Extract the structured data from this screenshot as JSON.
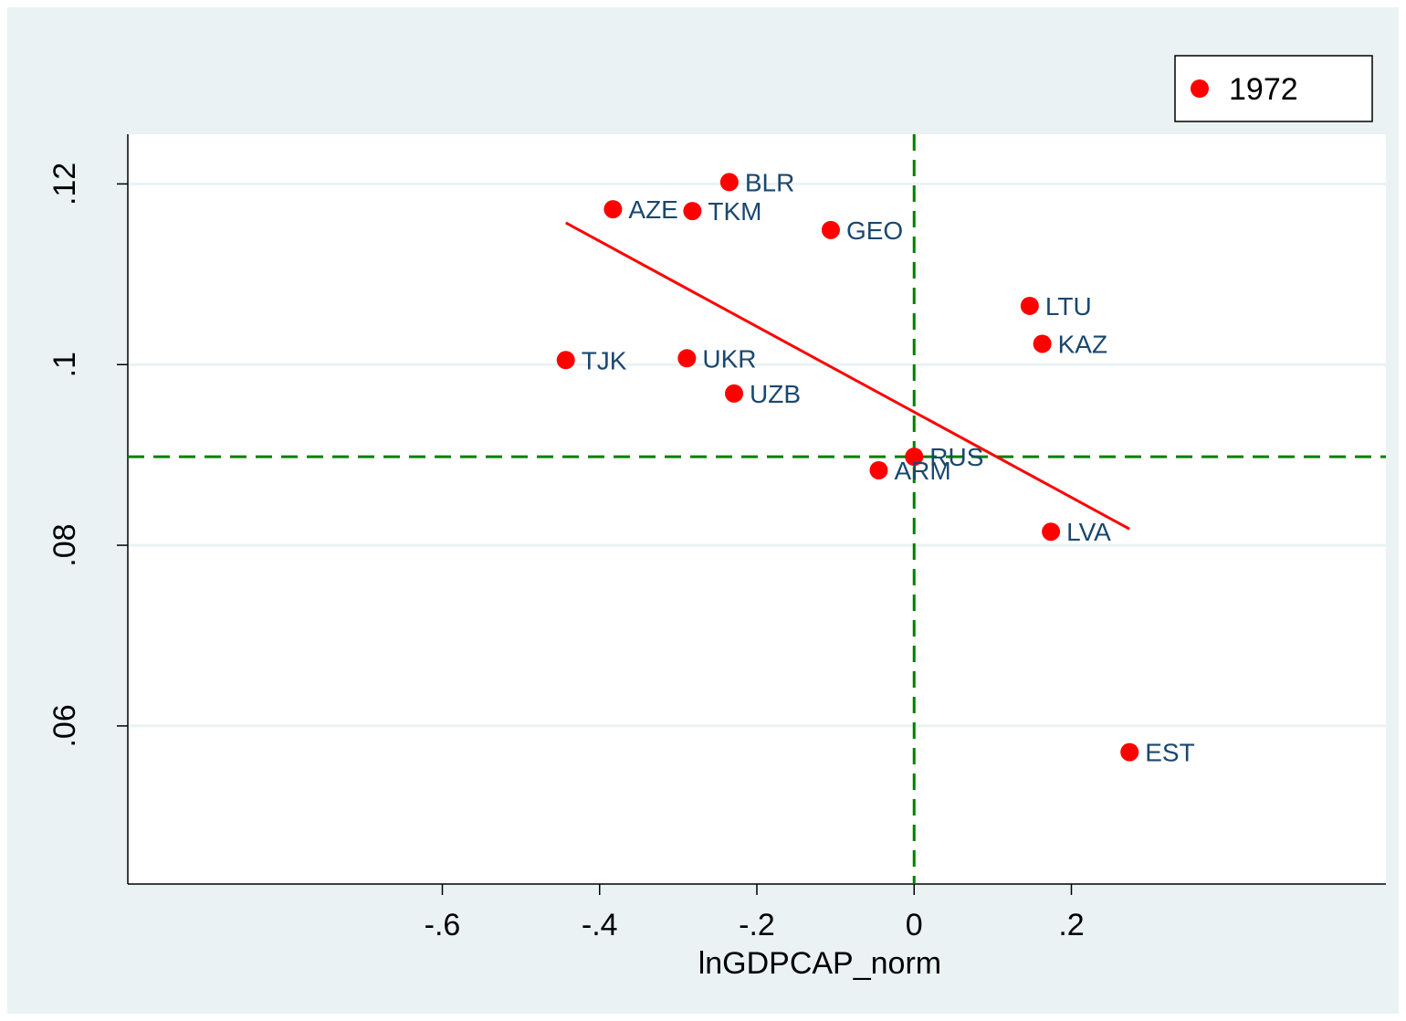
{
  "chart_data": {
    "type": "scatter",
    "xlabel": "lnGDPCAP_norm",
    "ylabel": "",
    "xlim": [
      -1.0,
      0.6
    ],
    "ylim": [
      0.0425,
      0.1255
    ],
    "x_ticks": [
      -0.6,
      -0.4,
      -0.2,
      0,
      0.2
    ],
    "x_tick_labels": [
      "-.6",
      "-.4",
      "-.2",
      "0",
      ".2"
    ],
    "y_ticks": [
      0.06,
      0.08,
      0.1,
      0.12
    ],
    "y_tick_labels": [
      ".06",
      ".08",
      ".1",
      ".12"
    ],
    "grid": "horizontal",
    "legend": {
      "position": "top-right",
      "entries": [
        "1972"
      ]
    },
    "colors": {
      "background": "#eaf2f3",
      "plot_area": "#ffffff",
      "points": "#ff0000",
      "fit_line": "#ff0000",
      "reference_lines": "#008000",
      "grid": "#eaf2f3",
      "point_labels": "#1a476f"
    },
    "series": [
      {
        "name": "1972",
        "points": [
          {
            "label": "BLR",
            "x": -0.235,
            "y": 0.1202
          },
          {
            "label": "AZE",
            "x": -0.383,
            "y": 0.1172
          },
          {
            "label": "TKM",
            "x": -0.282,
            "y": 0.117
          },
          {
            "label": "GEO",
            "x": -0.106,
            "y": 0.1149
          },
          {
            "label": "LTU",
            "x": 0.147,
            "y": 0.1065
          },
          {
            "label": "KAZ",
            "x": 0.163,
            "y": 0.1023
          },
          {
            "label": "TJK",
            "x": -0.443,
            "y": 0.1005
          },
          {
            "label": "UKR",
            "x": -0.289,
            "y": 0.1007
          },
          {
            "label": "UZB",
            "x": -0.229,
            "y": 0.0968
          },
          {
            "label": "RUS",
            "x": 0.0,
            "y": 0.0898
          },
          {
            "label": "ARM",
            "x": -0.045,
            "y": 0.0883
          },
          {
            "label": "LVA",
            "x": 0.174,
            "y": 0.0815
          },
          {
            "label": "EST",
            "x": 0.274,
            "y": 0.0571
          }
        ]
      }
    ],
    "fit_line": {
      "x": [
        -0.443,
        0.274
      ],
      "y": [
        0.1157,
        0.0818
      ]
    },
    "reference_lines": {
      "x": 0,
      "y": 0.0898
    }
  }
}
